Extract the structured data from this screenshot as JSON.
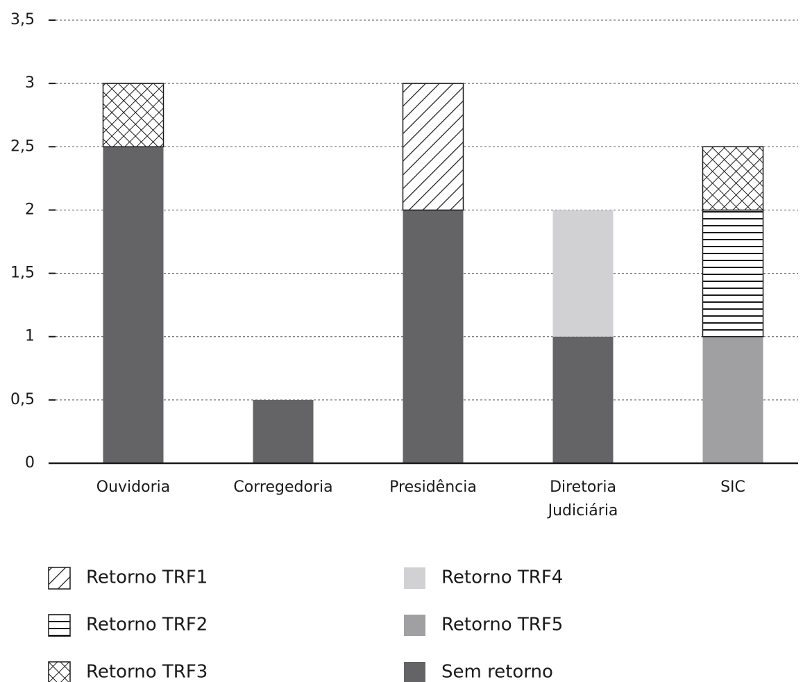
{
  "chart_data": {
    "type": "stacked_bar",
    "categories": [
      "Ouvidoria",
      "Corregedoria",
      "Presidência",
      "Diretoria Judiciária",
      "SIC"
    ],
    "series": [
      {
        "name": "Retorno TRF1",
        "color": "#1a1a1a",
        "pattern": "diagonal",
        "values": [
          null,
          null,
          1,
          null,
          null
        ]
      },
      {
        "name": "Retorno TRF2",
        "color": "#1a1a1a",
        "pattern": "horizontal",
        "values": [
          null,
          null,
          null,
          null,
          1
        ]
      },
      {
        "name": "Retorno TRF3",
        "color": "#1a1a1a",
        "pattern": "crosshatch",
        "values": [
          0.5,
          null,
          null,
          null,
          0.5
        ]
      },
      {
        "name": "Retorno TRF4",
        "color": "#d1d1d3",
        "values": [
          null,
          null,
          null,
          1,
          null
        ]
      },
      {
        "name": "Retorno TRF5",
        "color": "#a0a0a2",
        "values": [
          null,
          null,
          null,
          null,
          1
        ]
      },
      {
        "name": "Sem retorno",
        "color": "#646466",
        "values": [
          2.5,
          0.5,
          2,
          1,
          null
        ]
      }
    ],
    "ylim": [
      0,
      3.5
    ],
    "yticks": [
      0,
      {
        "value": 0.5,
        "label": "0,5"
      },
      1,
      {
        "value": 1.5,
        "label": "1,5"
      },
      2,
      {
        "value": 2.5,
        "label": "2,5"
      },
      3,
      {
        "value": 3.5,
        "label": "3,5"
      }
    ],
    "grid": true
  }
}
